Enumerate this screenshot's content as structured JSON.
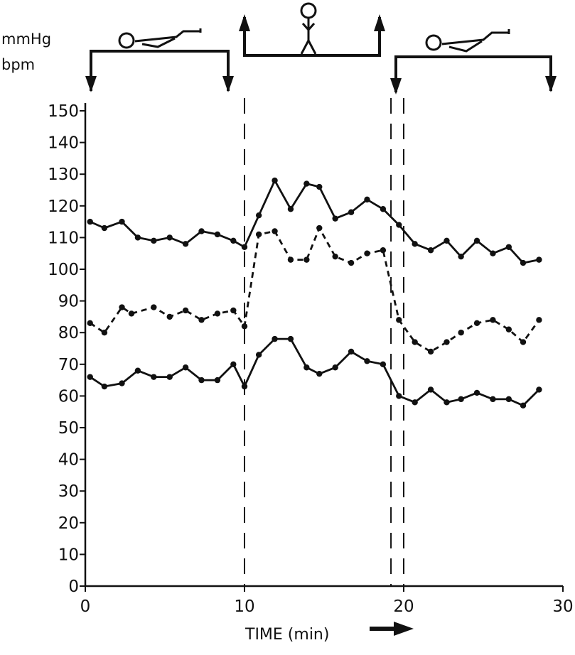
{
  "chart_data": {
    "type": "line",
    "title": "",
    "ylabel_lines": [
      "mmHg",
      "bpm"
    ],
    "xlabel": "TIME (min)",
    "xlim": [
      0,
      30
    ],
    "ylim": [
      0,
      150
    ],
    "x_ticks": [
      "0",
      "10",
      "20",
      "30"
    ],
    "y_ticks": [
      "0",
      "10",
      "20",
      "30",
      "40",
      "50",
      "60",
      "70",
      "80",
      "90",
      "100",
      "110",
      "120",
      "130",
      "140",
      "150"
    ],
    "phases": [
      {
        "name": "supine",
        "start": 0,
        "end": 9.2
      },
      {
        "name": "standing",
        "start": 10,
        "end": 19.2
      },
      {
        "name": "supine",
        "start": 19.5,
        "end": 29.2
      }
    ],
    "phase_boundaries": [
      10,
      19.2,
      20
    ],
    "series": [
      {
        "style": "solid",
        "x": [
          0.3,
          1.2,
          2.3,
          3.3,
          4.3,
          5.3,
          6.3,
          7.3,
          8.3,
          9.3,
          10.0,
          10.9,
          11.9,
          12.9,
          13.9,
          14.7,
          15.7,
          16.7,
          17.7,
          18.7,
          19.7,
          20.7,
          21.7,
          22.7,
          23.6,
          24.6,
          25.6,
          26.6,
          27.5,
          28.5
        ],
        "values": [
          115,
          113,
          115,
          110,
          109,
          110,
          108,
          112,
          111,
          109,
          107,
          117,
          128,
          119,
          127,
          126,
          116,
          118,
          122,
          119,
          114,
          108,
          106,
          109,
          104,
          109,
          105,
          107,
          102,
          103
        ]
      },
      {
        "style": "dashed",
        "x": [
          0.3,
          1.2,
          2.3,
          2.9,
          4.3,
          5.3,
          6.3,
          7.3,
          8.3,
          9.3,
          10.0,
          10.9,
          11.9,
          12.9,
          13.9,
          14.7,
          15.7,
          16.7,
          17.7,
          18.7,
          19.7,
          20.7,
          21.7,
          22.7,
          23.6,
          24.6,
          25.6,
          26.6,
          27.5,
          28.5
        ],
        "values": [
          83,
          80,
          88,
          86,
          88,
          85,
          87,
          84,
          86,
          87,
          82,
          111,
          112,
          103,
          103,
          113,
          104,
          102,
          105,
          106,
          84,
          77,
          74,
          77,
          80,
          83,
          84,
          81,
          77,
          84
        ]
      },
      {
        "style": "solid",
        "x": [
          0.3,
          1.2,
          2.3,
          3.3,
          4.3,
          5.3,
          6.3,
          7.3,
          8.3,
          9.3,
          10.0,
          10.9,
          11.9,
          12.9,
          13.9,
          14.7,
          15.7,
          16.7,
          17.7,
          18.7,
          19.7,
          20.7,
          21.7,
          22.7,
          23.6,
          24.6,
          25.6,
          26.6,
          27.5,
          28.5
        ],
        "values": [
          66,
          63,
          64,
          68,
          66,
          66,
          69,
          65,
          65,
          70,
          63,
          73,
          78,
          78,
          69,
          67,
          69,
          74,
          71,
          70,
          60,
          58,
          62,
          58,
          59,
          61,
          59,
          59,
          57,
          62
        ]
      }
    ],
    "colors": {
      "ink": "#111111",
      "background": "#ffffff"
    }
  }
}
